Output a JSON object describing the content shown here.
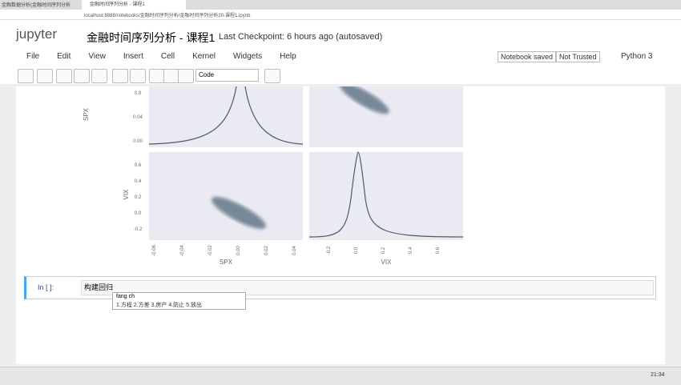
{
  "browser": {
    "tabs": [
      "金融数据分析(金融时间序列分析",
      "金融时间序列分析 - 课程1"
    ],
    "url": "localhost:8888/notebooks/金融时间序列分析/金融时间序列分析20-课程1.ipynb"
  },
  "header": {
    "logo": "jupyter",
    "title": "金融时间序列分析 - 课程1",
    "checkpoint": "Last Checkpoint: 6 hours ago (autosaved)"
  },
  "menu": [
    "File",
    "Edit",
    "View",
    "Insert",
    "Cell",
    "Kernel",
    "Widgets",
    "Help"
  ],
  "status": {
    "saved": "Notebook saved",
    "trust": "Not Trusted",
    "kernel": "Python 3"
  },
  "toolbar": {
    "cell_type": "Code"
  },
  "plot": {
    "x_labels": [
      "SPX",
      "VIX"
    ],
    "y_labels": [
      "SPX",
      "VIX"
    ],
    "spx_ticks": [
      "-0.06",
      "-0.04",
      "-0.02",
      "0.00",
      "0.02",
      "0.04"
    ],
    "vix_ticks": [
      "-0.2",
      "0.0",
      "0.2",
      "0.4",
      "0.6"
    ],
    "top_y_ticks": [
      "0.8",
      "0.04",
      "0.00"
    ],
    "vix_y_ticks": [
      "0.6",
      "0.4",
      "0.2",
      "0.0",
      "-0.2"
    ]
  },
  "cell": {
    "prompt": "In [ ]:",
    "input": "构建回归"
  },
  "ime": {
    "pinyin": "fang ch",
    "candidates": "1.方程 2.方差 3.房产 4.防止 5.放出"
  },
  "taskbar": {
    "time": "21:34"
  }
}
